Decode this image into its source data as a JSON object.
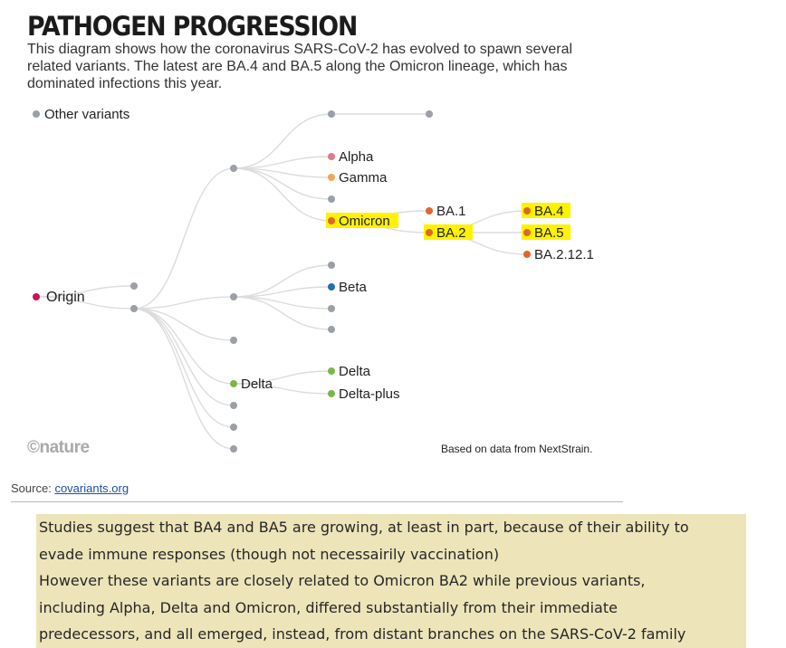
{
  "title": "PATHOGEN PROGRESSION",
  "subtitle_lines": [
    "This diagram shows how the coronavirus SARS-CoV-2 has evolved to spawn several",
    "related variants. The latest are BA.4 and BA.5 along the Omicron lineage, which has",
    "dominated infections this year."
  ],
  "legend_label": "Other variants",
  "colors": {
    "grey": "#9aa0a6",
    "alpha": "#e07b8a",
    "gamma": "#f2a65a",
    "omicron": "#e0662a",
    "beta": "#1f6fb5",
    "delta": "#7ab648",
    "origin": "#c8125a",
    "highlight": "#fff200",
    "link": "#dcdcdc"
  },
  "node_labels": {
    "origin": "Origin",
    "alpha": "Alpha",
    "gamma": "Gamma",
    "omicron": "Omicron",
    "ba1": "BA.1",
    "ba2": "BA.2",
    "ba4": "BA.4",
    "ba5": "BA.5",
    "ba2121": "BA.2.12.1",
    "beta": "Beta",
    "delta": "Delta",
    "delta_leaf": "Delta",
    "delta_plus": "Delta-plus"
  },
  "nature_logo": "©nature",
  "credit": "Based on data from NextStrain.",
  "source_prefix": "Source:",
  "source_link": "covariants.org",
  "note_lines": [
    "Studies suggest that BA4 and BA5 are growing, at least in part, because of their ability to",
    "evade immune responses (though not necessairily vaccination)",
    "However these variants are closely related to Omicron BA2 while previous variants,",
    "including Alpha, Delta and Omicron, differed substantially from their immediate",
    "predecessors, and all emerged, instead, from distant branches on the SARS-CoV-2 family"
  ]
}
